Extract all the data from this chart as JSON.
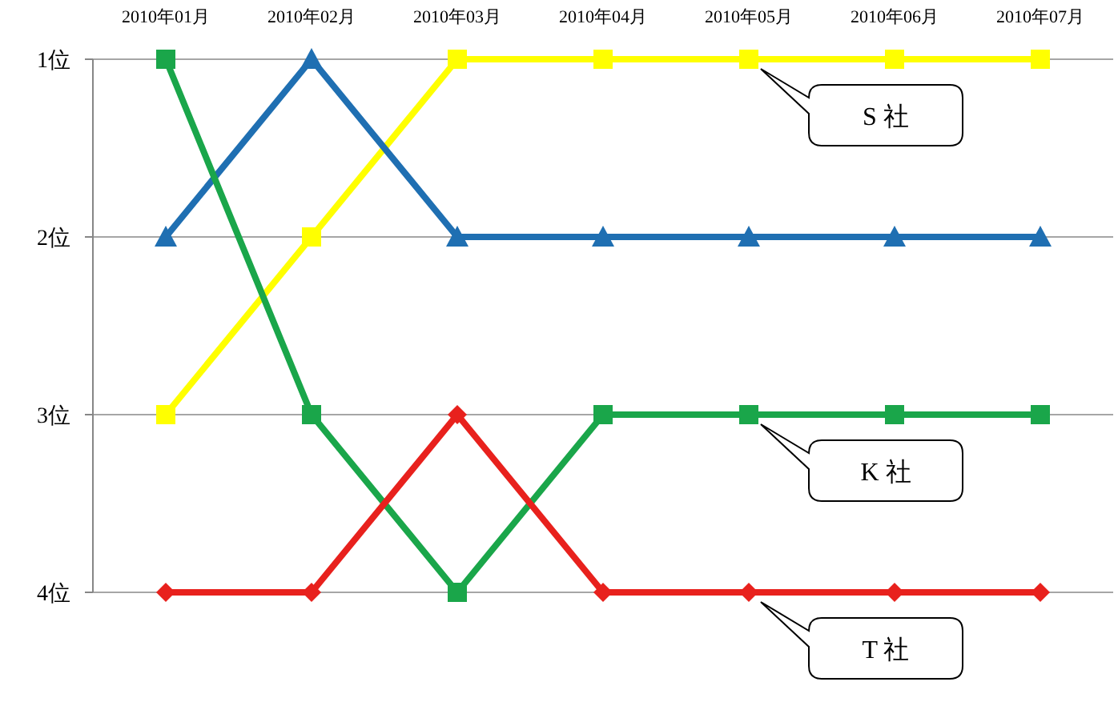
{
  "chart_data": {
    "type": "line",
    "categories": [
      "2010年01月",
      "2010年02月",
      "2010年03月",
      "2010年04月",
      "2010年05月",
      "2010年06月",
      "2010年07月"
    ],
    "ylim": [
      4,
      1
    ],
    "yticks": [
      {
        "value": 1,
        "label": "1位"
      },
      {
        "value": 2,
        "label": "2位"
      },
      {
        "value": 3,
        "label": "3位"
      },
      {
        "value": 4,
        "label": "4位"
      }
    ],
    "grid": "y",
    "series": [
      {
        "name": "S 社",
        "color": "#ffff00",
        "marker": "square",
        "values": [
          3,
          2,
          1,
          1,
          1,
          1,
          1
        ]
      },
      {
        "color": "#1f6fb2",
        "marker": "triangle",
        "values": [
          2,
          1,
          2,
          2,
          2,
          2,
          2
        ]
      },
      {
        "name": "K 社",
        "color": "#1aa64a",
        "marker": "square",
        "values": [
          1,
          3,
          4,
          3,
          3,
          3,
          3
        ]
      },
      {
        "name": "T 社",
        "color": "#e8211d",
        "marker": "diamond",
        "values": [
          4,
          4,
          3,
          4,
          4,
          4,
          4
        ]
      }
    ]
  }
}
